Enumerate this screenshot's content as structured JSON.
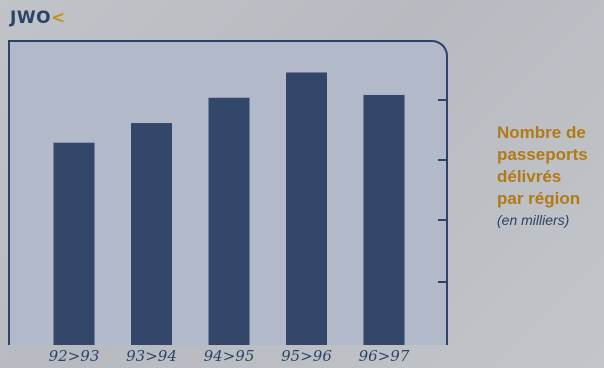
{
  "header": {
    "code": "JWO",
    "mark": "<"
  },
  "caption": {
    "lines": [
      "Nombre de",
      "passeports",
      "délivrés",
      "par région"
    ],
    "unit": "(en milliers)"
  },
  "chart_data": {
    "type": "bar",
    "title": "",
    "xlabel": "",
    "ylabel": "",
    "categories": [
      "92>93",
      "93>94",
      "94>95",
      "95>96",
      "96>97"
    ],
    "values": [
      72,
      79,
      88,
      97,
      89
    ],
    "ylim": [
      0,
      105
    ],
    "grid": false,
    "legend": "none",
    "colors": {
      "bar": "#33476a",
      "plot_background": "#b2b9c8",
      "frame": "#2c4266",
      "title_accent": "#c8901f",
      "caption": "#b07a14",
      "tick_label": "#2c4266"
    }
  }
}
